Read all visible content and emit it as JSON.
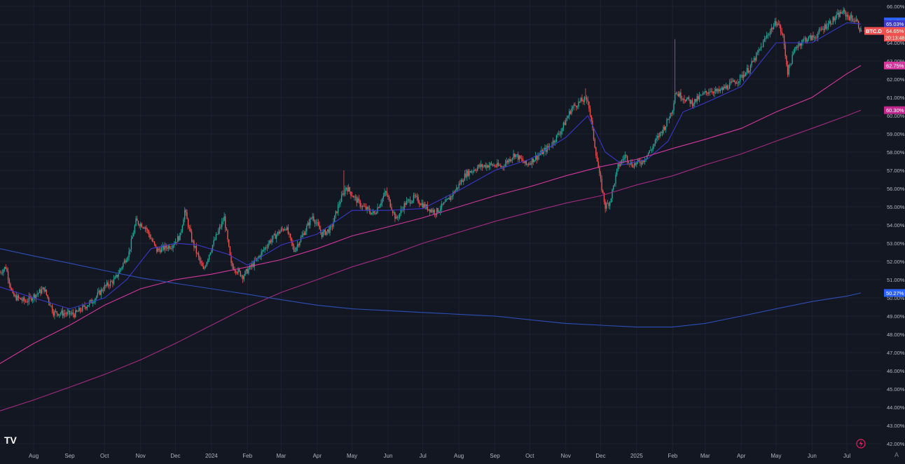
{
  "symbol": {
    "label": "BTC.D",
    "timer": "20:13:48"
  },
  "watermark": {
    "logo_text": "TV"
  },
  "colors": {
    "background": "#131722",
    "grid": "#1e2230",
    "up": "#26a69a",
    "down": "#ef5350",
    "ma_short": "#3a37c9",
    "ma_200": "#d3379c",
    "ma_long": "#a32a82",
    "ma_very_long": "#2c4fb8",
    "axis_text": "#b2b5be"
  },
  "chart_data": {
    "type": "line",
    "title": "",
    "xlabel": "",
    "ylabel": "",
    "grid": true,
    "y_scale": "linear",
    "ylim": [
      41.8,
      66.2
    ],
    "x_range": [
      "2023-07-03",
      "2025-07-22"
    ],
    "y_ticks": [
      "42.00%",
      "43.00%",
      "44.00%",
      "45.00%",
      "46.00%",
      "47.00%",
      "48.00%",
      "49.00%",
      "50.00%",
      "51.00%",
      "52.00%",
      "53.00%",
      "54.00%",
      "55.00%",
      "56.00%",
      "57.00%",
      "58.00%",
      "59.00%",
      "60.00%",
      "61.00%",
      "62.00%",
      "63.00%",
      "64.00%",
      "65.00%",
      "66.00%"
    ],
    "x_ticks": [
      {
        "label": "Aug",
        "date": "2023-08-01"
      },
      {
        "label": "Sep",
        "date": "2023-09-01"
      },
      {
        "label": "Oct",
        "date": "2023-10-01"
      },
      {
        "label": "Nov",
        "date": "2023-11-01"
      },
      {
        "label": "Dec",
        "date": "2023-12-01"
      },
      {
        "label": "2024",
        "date": "2024-01-01"
      },
      {
        "label": "Feb",
        "date": "2024-02-01"
      },
      {
        "label": "Mar",
        "date": "2024-03-01"
      },
      {
        "label": "Apr",
        "date": "2024-04-01"
      },
      {
        "label": "May",
        "date": "2024-05-01"
      },
      {
        "label": "Jun",
        "date": "2024-06-01"
      },
      {
        "label": "Jul",
        "date": "2024-07-01"
      },
      {
        "label": "Aug",
        "date": "2024-08-01"
      },
      {
        "label": "Sep",
        "date": "2024-09-01"
      },
      {
        "label": "Oct",
        "date": "2024-10-01"
      },
      {
        "label": "Nov",
        "date": "2024-11-01"
      },
      {
        "label": "Dec",
        "date": "2024-12-01"
      },
      {
        "label": "2025",
        "date": "2025-01-01"
      },
      {
        "label": "Feb",
        "date": "2025-02-01"
      },
      {
        "label": "Mar",
        "date": "2025-03-01"
      },
      {
        "label": "Apr",
        "date": "2025-04-01"
      },
      {
        "label": "May",
        "date": "2025-05-01"
      },
      {
        "label": "Jun",
        "date": "2025-06-01"
      },
      {
        "label": "Jul",
        "date": "2025-07-01"
      }
    ],
    "price_path": [
      [
        "2023-07-03",
        51.4
      ],
      [
        "2023-07-08",
        51.7
      ],
      [
        "2023-07-14",
        50.1
      ],
      [
        "2023-07-25",
        49.8
      ],
      [
        "2023-08-10",
        50.5
      ],
      [
        "2023-08-18",
        49.2
      ],
      [
        "2023-09-05",
        49.1
      ],
      [
        "2023-09-20",
        49.8
      ],
      [
        "2023-10-01",
        50.6
      ],
      [
        "2023-10-10",
        51.0
      ],
      [
        "2023-10-22",
        52.5
      ],
      [
        "2023-10-28",
        54.2
      ],
      [
        "2023-11-05",
        53.9
      ],
      [
        "2023-11-15",
        52.6
      ],
      [
        "2023-11-28",
        52.9
      ],
      [
        "2023-12-05",
        53.4
      ],
      [
        "2023-12-09",
        54.8
      ],
      [
        "2023-12-15",
        53.2
      ],
      [
        "2023-12-25",
        51.5
      ],
      [
        "2023-12-31",
        52.6
      ],
      [
        "2024-01-06",
        53.5
      ],
      [
        "2024-01-12",
        54.4
      ],
      [
        "2024-01-18",
        51.8
      ],
      [
        "2024-01-28",
        51.2
      ],
      [
        "2024-02-08",
        52.0
      ],
      [
        "2024-02-20",
        53.1
      ],
      [
        "2024-02-28",
        53.6
      ],
      [
        "2024-03-05",
        53.9
      ],
      [
        "2024-03-12",
        52.6
      ],
      [
        "2024-03-20",
        53.5
      ],
      [
        "2024-03-28",
        54.5
      ],
      [
        "2024-04-05",
        53.5
      ],
      [
        "2024-04-13",
        53.8
      ],
      [
        "2024-04-20",
        55.2
      ],
      [
        "2024-04-26",
        56.1
      ],
      [
        "2024-05-03",
        55.5
      ],
      [
        "2024-05-10",
        55.0
      ],
      [
        "2024-05-20",
        54.6
      ],
      [
        "2024-05-30",
        55.8
      ],
      [
        "2024-06-08",
        54.3
      ],
      [
        "2024-06-16",
        55.2
      ],
      [
        "2024-06-24",
        55.5
      ],
      [
        "2024-07-03",
        55.0
      ],
      [
        "2024-07-12",
        54.7
      ],
      [
        "2024-07-22",
        55.3
      ],
      [
        "2024-07-30",
        56.0
      ],
      [
        "2024-08-07",
        56.8
      ],
      [
        "2024-08-18",
        57.2
      ],
      [
        "2024-08-28",
        57.3
      ],
      [
        "2024-09-07",
        57.2
      ],
      [
        "2024-09-18",
        57.9
      ],
      [
        "2024-09-28",
        57.3
      ],
      [
        "2024-10-08",
        57.8
      ],
      [
        "2024-10-18",
        58.3
      ],
      [
        "2024-10-28",
        59.2
      ],
      [
        "2024-11-06",
        60.4
      ],
      [
        "2024-11-14",
        60.8
      ],
      [
        "2024-11-20",
        60.9
      ],
      [
        "2024-11-24",
        59.2
      ],
      [
        "2024-11-30",
        56.7
      ],
      [
        "2024-12-05",
        55.0
      ],
      [
        "2024-12-09",
        55.3
      ],
      [
        "2024-12-16",
        57.2
      ],
      [
        "2024-12-22",
        57.8
      ],
      [
        "2024-12-28",
        57.3
      ],
      [
        "2025-01-06",
        57.5
      ],
      [
        "2025-01-14",
        58.2
      ],
      [
        "2025-01-20",
        58.9
      ],
      [
        "2025-01-26",
        59.5
      ],
      [
        "2025-02-01",
        60.4
      ],
      [
        "2025-02-03",
        61.3
      ],
      [
        "2025-02-10",
        61.0
      ],
      [
        "2025-02-18",
        60.7
      ],
      [
        "2025-02-26",
        61.1
      ],
      [
        "2025-03-05",
        61.4
      ],
      [
        "2025-03-12",
        61.3
      ],
      [
        "2025-03-20",
        61.6
      ],
      [
        "2025-03-30",
        62.0
      ],
      [
        "2025-04-08",
        62.6
      ],
      [
        "2025-04-16",
        63.5
      ],
      [
        "2025-04-24",
        64.5
      ],
      [
        "2025-05-02",
        65.2
      ],
      [
        "2025-05-07",
        64.3
      ],
      [
        "2025-05-11",
        62.4
      ],
      [
        "2025-05-18",
        63.8
      ],
      [
        "2025-05-26",
        64.2
      ],
      [
        "2025-06-03",
        64.3
      ],
      [
        "2025-06-12",
        64.9
      ],
      [
        "2025-06-20",
        65.3
      ],
      [
        "2025-06-27",
        65.7
      ],
      [
        "2025-07-03",
        65.4
      ],
      [
        "2025-07-09",
        65.2
      ],
      [
        "2025-07-13",
        64.65
      ]
    ],
    "wick_spikes": [
      {
        "date": "2025-02-03",
        "high": 64.2
      },
      {
        "date": "2024-04-24",
        "high": 57.0
      },
      {
        "date": "2024-11-18",
        "high": 61.5
      }
    ],
    "series": [
      {
        "role": "ma_short",
        "points": [
          [
            "2023-07-03",
            50.6
          ],
          [
            "2023-08-01",
            50.0
          ],
          [
            "2023-09-01",
            49.4
          ],
          [
            "2023-10-01",
            50.0
          ],
          [
            "2023-10-20",
            51.0
          ],
          [
            "2023-11-10",
            52.7
          ],
          [
            "2023-12-01",
            53.0
          ],
          [
            "2023-12-20",
            52.9
          ],
          [
            "2024-01-15",
            52.4
          ],
          [
            "2024-02-01",
            51.8
          ],
          [
            "2024-03-01",
            52.9
          ],
          [
            "2024-04-01",
            53.5
          ],
          [
            "2024-05-01",
            54.8
          ],
          [
            "2024-06-01",
            54.8
          ],
          [
            "2024-07-01",
            54.9
          ],
          [
            "2024-08-01",
            55.9
          ],
          [
            "2024-09-01",
            57.0
          ],
          [
            "2024-10-01",
            57.6
          ],
          [
            "2024-11-01",
            58.8
          ],
          [
            "2024-11-20",
            60.0
          ],
          [
            "2024-12-05",
            58.0
          ],
          [
            "2024-12-20",
            57.3
          ],
          [
            "2025-01-10",
            57.6
          ],
          [
            "2025-01-28",
            58.6
          ],
          [
            "2025-02-10",
            60.2
          ],
          [
            "2025-03-01",
            60.7
          ],
          [
            "2025-04-01",
            61.6
          ],
          [
            "2025-05-01",
            64.0
          ],
          [
            "2025-05-15",
            64.0
          ],
          [
            "2025-06-01",
            64.0
          ],
          [
            "2025-07-01",
            65.1
          ],
          [
            "2025-07-13",
            65.03
          ]
        ]
      },
      {
        "role": "ma_200",
        "points": [
          [
            "2023-07-03",
            46.4
          ],
          [
            "2023-08-01",
            47.5
          ],
          [
            "2023-09-01",
            48.5
          ],
          [
            "2023-10-01",
            49.6
          ],
          [
            "2023-11-01",
            50.5
          ],
          [
            "2023-12-01",
            51.0
          ],
          [
            "2024-01-01",
            51.3
          ],
          [
            "2024-02-01",
            51.7
          ],
          [
            "2024-03-01",
            52.1
          ],
          [
            "2024-04-01",
            52.7
          ],
          [
            "2024-05-01",
            53.4
          ],
          [
            "2024-06-01",
            53.9
          ],
          [
            "2024-07-01",
            54.4
          ],
          [
            "2024-08-01",
            55.0
          ],
          [
            "2024-09-01",
            55.6
          ],
          [
            "2024-10-01",
            56.1
          ],
          [
            "2024-11-01",
            56.7
          ],
          [
            "2024-12-01",
            57.2
          ],
          [
            "2025-01-01",
            57.6
          ],
          [
            "2025-02-01",
            58.2
          ],
          [
            "2025-03-01",
            58.7
          ],
          [
            "2025-04-01",
            59.3
          ],
          [
            "2025-05-01",
            60.2
          ],
          [
            "2025-06-01",
            61.0
          ],
          [
            "2025-07-01",
            62.3
          ],
          [
            "2025-07-13",
            62.75
          ]
        ]
      },
      {
        "role": "ma_long",
        "points": [
          [
            "2023-07-03",
            43.8
          ],
          [
            "2023-08-01",
            44.4
          ],
          [
            "2023-09-01",
            45.1
          ],
          [
            "2023-10-01",
            45.8
          ],
          [
            "2023-11-01",
            46.6
          ],
          [
            "2023-12-01",
            47.5
          ],
          [
            "2024-01-01",
            48.5
          ],
          [
            "2024-02-01",
            49.5
          ],
          [
            "2024-03-01",
            50.3
          ],
          [
            "2024-04-01",
            51.0
          ],
          [
            "2024-05-01",
            51.7
          ],
          [
            "2024-06-01",
            52.3
          ],
          [
            "2024-07-01",
            53.0
          ],
          [
            "2024-08-01",
            53.6
          ],
          [
            "2024-09-01",
            54.2
          ],
          [
            "2024-10-01",
            54.7
          ],
          [
            "2024-11-01",
            55.2
          ],
          [
            "2024-12-01",
            55.6
          ],
          [
            "2025-01-01",
            56.2
          ],
          [
            "2025-02-01",
            56.7
          ],
          [
            "2025-03-01",
            57.3
          ],
          [
            "2025-04-01",
            57.9
          ],
          [
            "2025-05-01",
            58.6
          ],
          [
            "2025-06-01",
            59.3
          ],
          [
            "2025-07-01",
            60.0
          ],
          [
            "2025-07-13",
            60.3
          ]
        ]
      },
      {
        "role": "ma_very_long",
        "points": [
          [
            "2023-07-03",
            52.7
          ],
          [
            "2023-08-01",
            52.3
          ],
          [
            "2023-09-01",
            51.9
          ],
          [
            "2023-10-01",
            51.5
          ],
          [
            "2023-11-01",
            51.1
          ],
          [
            "2023-12-01",
            50.8
          ],
          [
            "2024-01-01",
            50.5
          ],
          [
            "2024-02-01",
            50.2
          ],
          [
            "2024-03-01",
            49.9
          ],
          [
            "2024-04-01",
            49.6
          ],
          [
            "2024-05-01",
            49.4
          ],
          [
            "2024-06-01",
            49.3
          ],
          [
            "2024-07-01",
            49.2
          ],
          [
            "2024-08-01",
            49.1
          ],
          [
            "2024-09-01",
            49.0
          ],
          [
            "2024-10-01",
            48.8
          ],
          [
            "2024-11-01",
            48.6
          ],
          [
            "2024-12-01",
            48.5
          ],
          [
            "2025-01-01",
            48.4
          ],
          [
            "2025-02-01",
            48.4
          ],
          [
            "2025-03-01",
            48.6
          ],
          [
            "2025-04-01",
            49.0
          ],
          [
            "2025-05-01",
            49.4
          ],
          [
            "2025-06-01",
            49.8
          ],
          [
            "2025-07-01",
            50.1
          ],
          [
            "2025-07-13",
            50.27
          ]
        ]
      }
    ],
    "price_labels": [
      {
        "text": "65.17%",
        "value": 65.17,
        "color": "#2962ff"
      },
      {
        "text": "65.03%",
        "value": 65.03,
        "color": "#3a37c9"
      },
      {
        "text": "64.65%",
        "value": 64.65,
        "color": "#ef5350"
      },
      {
        "text": "62.75%",
        "value": 62.75,
        "color": "#d3379c"
      },
      {
        "text": "60.30%",
        "value": 60.3,
        "color": "#c2278f"
      },
      {
        "text": "50.27%",
        "value": 50.27,
        "color": "#2962ff"
      }
    ]
  }
}
